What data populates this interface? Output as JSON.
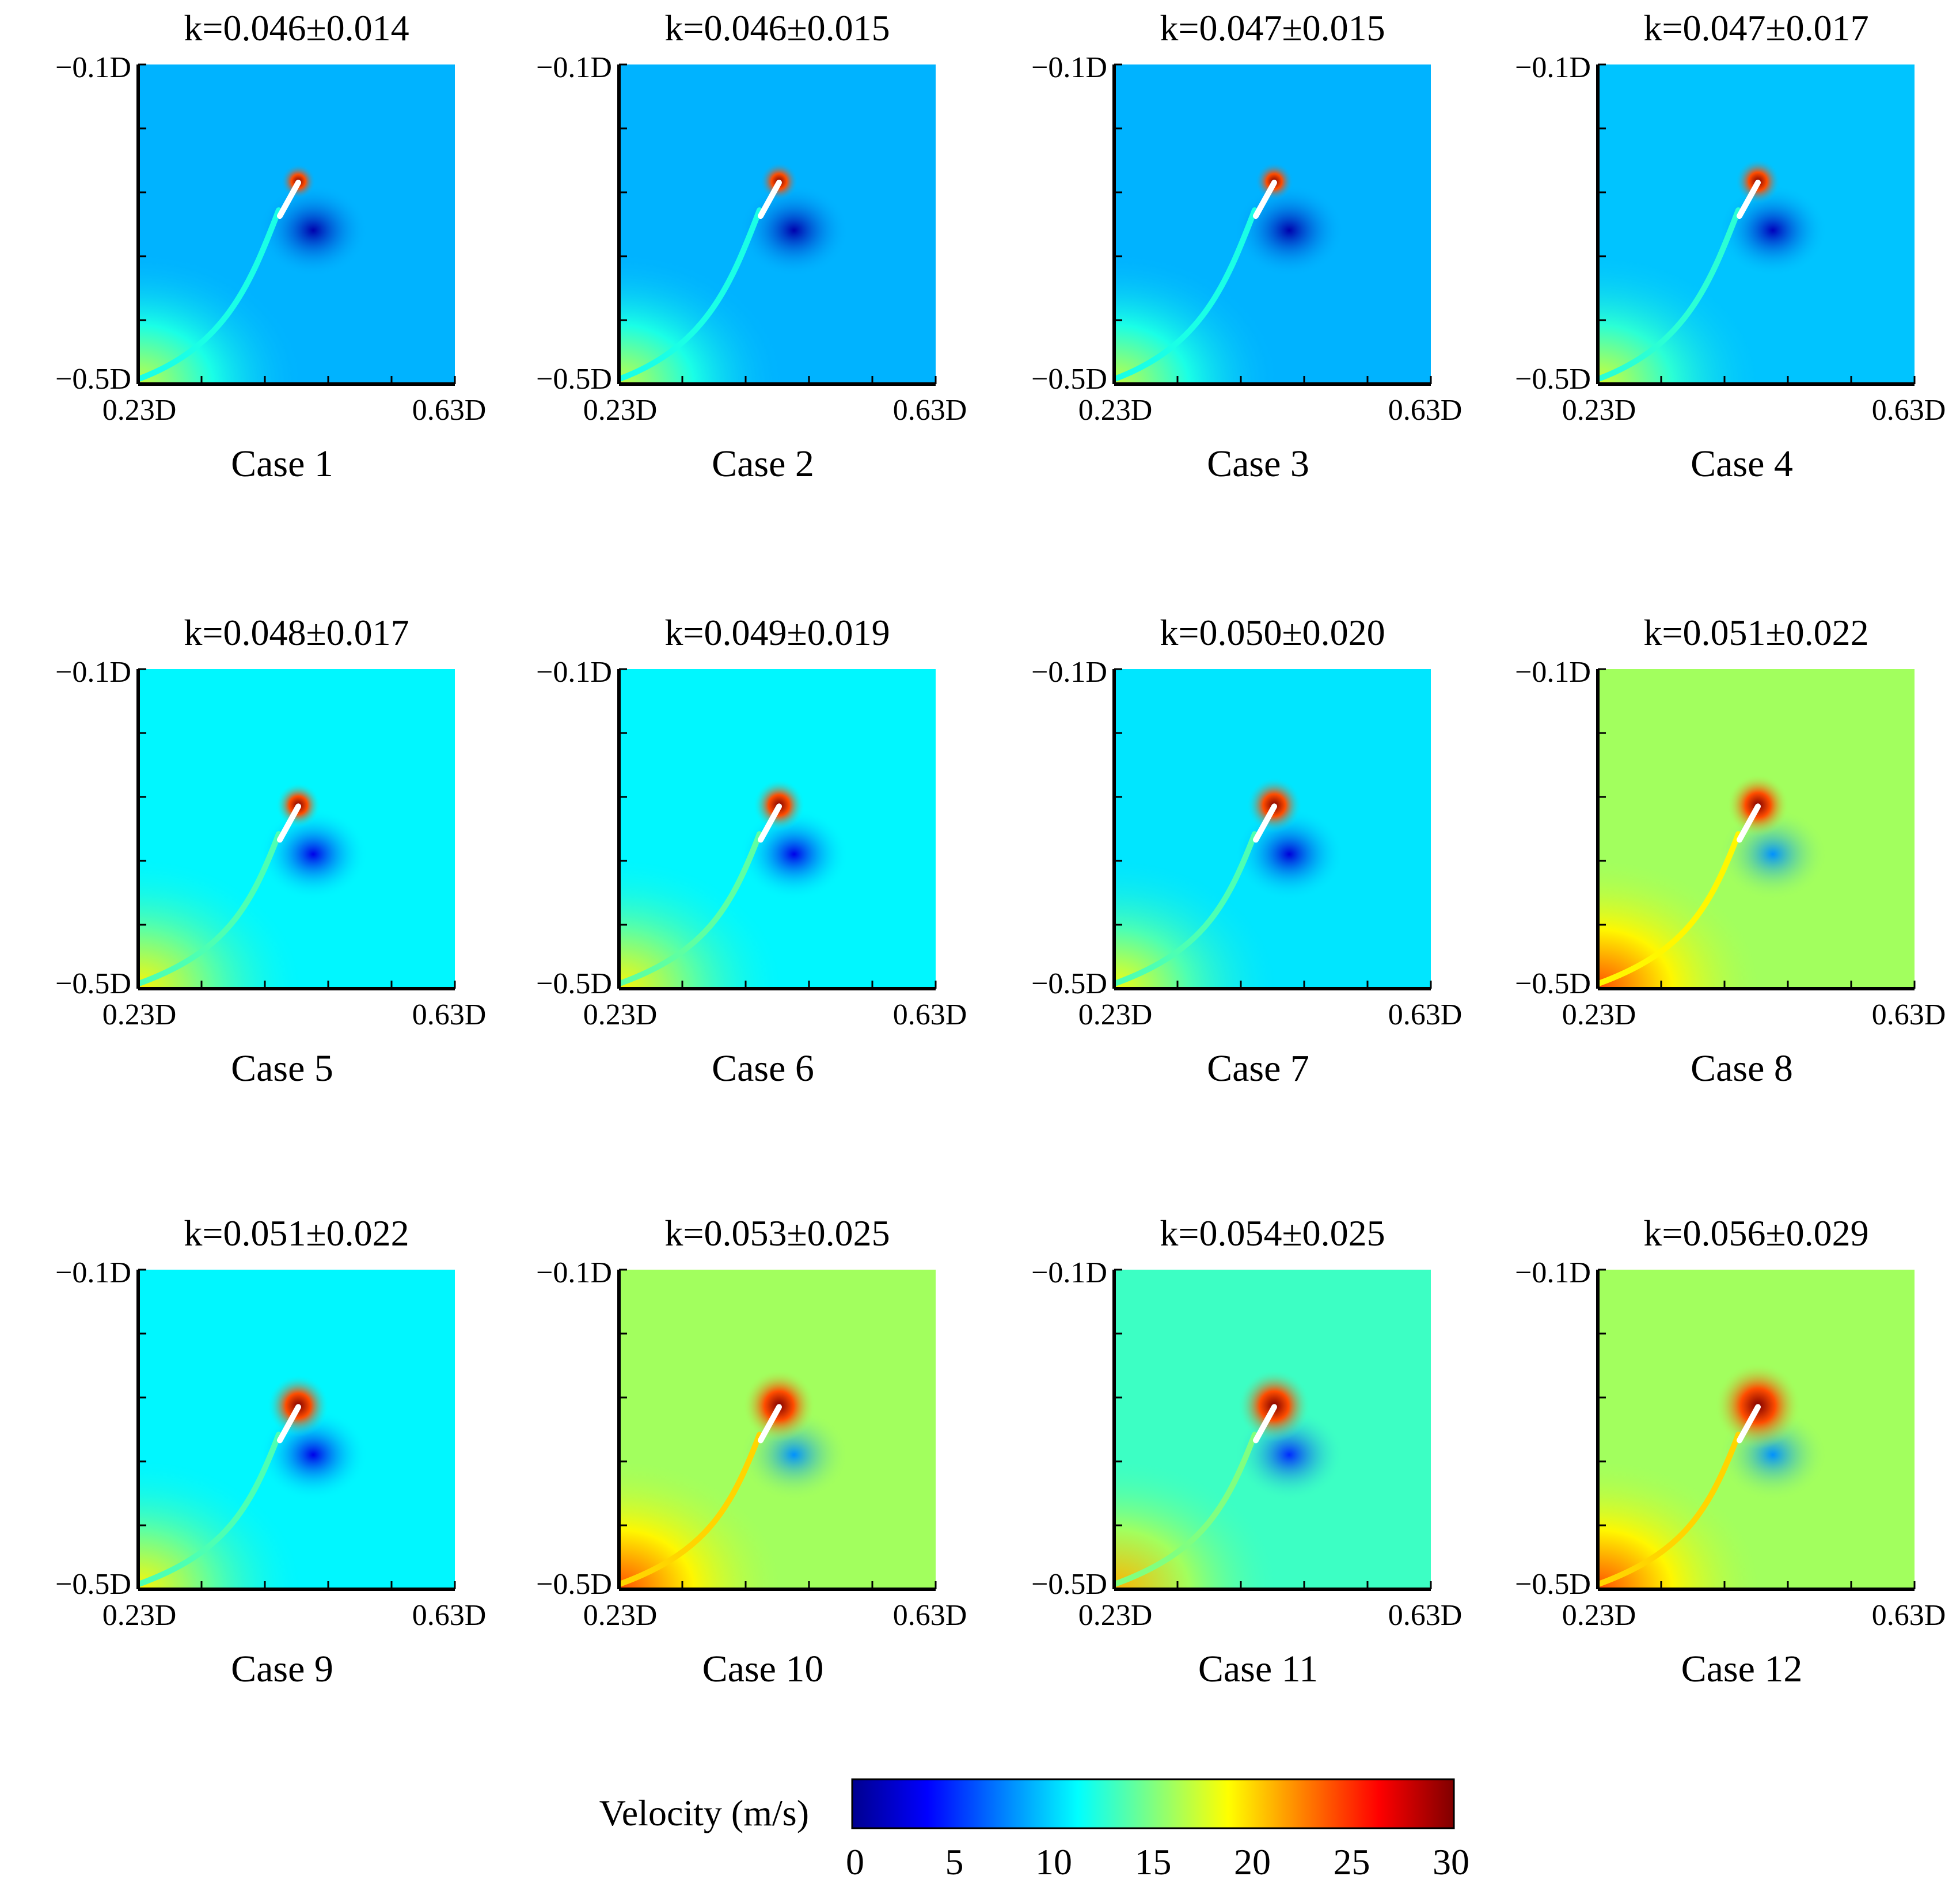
{
  "figure": {
    "axis_labels": {
      "y_top": "−0.1D",
      "y_bottom": "−0.5D",
      "x_left": "0.23D",
      "x_right": "0.63D"
    },
    "colorbar": {
      "label": "Velocity (m/s)",
      "ticks": [
        "0",
        "5",
        "10",
        "15",
        "20",
        "25",
        "30"
      ],
      "stops": [
        "#00008f",
        "#0000ff",
        "#0080ff",
        "#00ffff",
        "#80ff80",
        "#ffff00",
        "#ff8000",
        "#ff0000",
        "#800000"
      ]
    }
  },
  "chart_data": {
    "type": "heatmap",
    "quantity": "Velocity (m/s)",
    "value_range": [
      0,
      30
    ],
    "x_range": [
      "0.23D",
      "0.63D"
    ],
    "y_range": [
      "−0.1D",
      "−0.5D"
    ],
    "panels": [
      {
        "case": "Case 1",
        "title": "k=0.046±0.014",
        "k_mean": 0.046,
        "k_uncertainty": 0.014,
        "background_velocity": 9,
        "wake_velocity": 12
      },
      {
        "case": "Case 2",
        "title": "k=0.046±0.015",
        "k_mean": 0.046,
        "k_uncertainty": 0.015,
        "background_velocity": 9,
        "wake_velocity": 12
      },
      {
        "case": "Case 3",
        "title": "k=0.047±0.015",
        "k_mean": 0.047,
        "k_uncertainty": 0.015,
        "background_velocity": 9,
        "wake_velocity": 12
      },
      {
        "case": "Case 4",
        "title": "k=0.047±0.017",
        "k_mean": 0.047,
        "k_uncertainty": 0.017,
        "background_velocity": 9.5,
        "wake_velocity": 12.5
      },
      {
        "case": "Case 5",
        "title": "k=0.048±0.017",
        "k_mean": 0.048,
        "k_uncertainty": 0.017,
        "background_velocity": 11,
        "wake_velocity": 13.5
      },
      {
        "case": "Case 6",
        "title": "k=0.049±0.019",
        "k_mean": 0.049,
        "k_uncertainty": 0.019,
        "background_velocity": 11,
        "wake_velocity": 14
      },
      {
        "case": "Case 7",
        "title": "k=0.050±0.020",
        "k_mean": 0.05,
        "k_uncertainty": 0.02,
        "background_velocity": 10.5,
        "wake_velocity": 13.5
      },
      {
        "case": "Case 8",
        "title": "k=0.051±0.022",
        "k_mean": 0.051,
        "k_uncertainty": 0.022,
        "background_velocity": 16,
        "wake_velocity": 19
      },
      {
        "case": "Case 9",
        "title": "k=0.051±0.022",
        "k_mean": 0.051,
        "k_uncertainty": 0.022,
        "background_velocity": 11,
        "wake_velocity": 13.5
      },
      {
        "case": "Case 10",
        "title": "k=0.053±0.025",
        "k_mean": 0.053,
        "k_uncertainty": 0.025,
        "background_velocity": 16,
        "wake_velocity": 20
      },
      {
        "case": "Case 11",
        "title": "k=0.054±0.025",
        "k_mean": 0.054,
        "k_uncertainty": 0.025,
        "background_velocity": 13,
        "wake_velocity": 15
      },
      {
        "case": "Case 12",
        "title": "k=0.056±0.029",
        "k_mean": 0.056,
        "k_uncertainty": 0.029,
        "background_velocity": 16,
        "wake_velocity": 20
      }
    ]
  }
}
